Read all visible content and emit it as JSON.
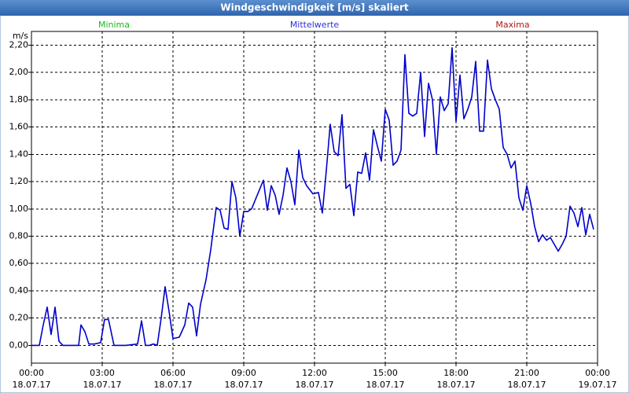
{
  "chart_data": {
    "type": "line",
    "title": "Windgeschwindigkeit [m/s] skaliert",
    "y_unit": "m/s",
    "legend": [
      {
        "name": "Minima",
        "color": "#18b818"
      },
      {
        "name": "Mittelwerte",
        "color": "#3030e0"
      },
      {
        "name": "Maxima",
        "color": "#b01818"
      }
    ],
    "x": [
      0,
      20,
      30,
      40,
      50,
      60,
      70,
      80,
      100,
      120,
      126,
      136,
      146,
      160,
      176,
      186,
      196,
      210,
      240,
      270,
      280,
      290,
      300,
      310,
      320,
      330,
      340,
      350,
      360,
      376,
      390,
      400,
      410,
      420,
      430,
      444,
      456,
      470,
      480,
      490,
      500,
      510,
      520,
      530,
      540,
      550,
      560,
      570,
      590,
      600,
      610,
      620,
      630,
      640,
      650,
      660,
      670,
      680,
      690,
      700,
      716,
      730,
      740,
      750,
      760,
      770,
      780,
      790,
      800,
      810,
      820,
      830,
      840,
      850,
      860,
      870,
      880,
      890,
      900,
      910,
      920,
      930,
      940,
      950,
      960,
      970,
      980,
      990,
      1000,
      1010,
      1020,
      1030,
      1040,
      1050,
      1060,
      1070,
      1080,
      1090,
      1100,
      1110,
      1120,
      1130,
      1140,
      1150,
      1160,
      1170,
      1180,
      1190,
      1200,
      1210,
      1220,
      1230,
      1240,
      1250,
      1260,
      1270,
      1280,
      1290,
      1300,
      1310,
      1320,
      1330,
      1340,
      1350,
      1360,
      1370,
      1380,
      1390,
      1400,
      1410,
      1420,
      1430
    ],
    "series": [
      {
        "color": "#0000cc",
        "values": [
          0,
          0,
          0.15,
          0.28,
          0.08,
          0.28,
          0.03,
          0,
          0,
          0,
          0.15,
          0.1,
          0.01,
          0.01,
          0.02,
          0.19,
          0.19,
          0,
          0,
          0.01,
          0.18,
          0,
          0,
          0.01,
          0,
          0.2,
          0.43,
          0.25,
          0.05,
          0.06,
          0.15,
          0.31,
          0.28,
          0.07,
          0.3,
          0.48,
          0.7,
          1.01,
          0.99,
          0.86,
          0.85,
          1.2,
          1.08,
          0.8,
          0.98,
          0.98,
          1.0,
          1.07,
          1.21,
          0.99,
          1.17,
          1.1,
          0.96,
          1.1,
          1.3,
          1.2,
          1.03,
          1.43,
          1.23,
          1.17,
          1.11,
          1.12,
          0.97,
          1.28,
          1.62,
          1.42,
          1.39,
          1.69,
          1.15,
          1.18,
          0.95,
          1.27,
          1.26,
          1.41,
          1.21,
          1.58,
          1.46,
          1.35,
          1.73,
          1.65,
          1.32,
          1.35,
          1.43,
          2.13,
          1.7,
          1.68,
          1.7,
          2.0,
          1.53,
          1.92,
          1.8,
          1.4,
          1.82,
          1.72,
          1.77,
          2.18,
          1.64,
          1.98,
          1.66,
          1.73,
          1.82,
          2.08,
          1.57,
          1.57,
          2.09,
          1.88,
          1.8,
          1.73,
          1.45,
          1.4,
          1.3,
          1.35,
          1.08,
          0.99,
          1.17,
          1.04,
          0.87,
          0.76,
          0.81,
          0.77,
          0.79,
          0.74,
          0.69,
          0.74,
          0.8,
          1.02,
          0.97,
          0.87,
          1.01,
          0.81,
          0.96,
          0.85
        ]
      }
    ],
    "xlim": [
      0,
      1440
    ],
    "xticks": [
      {
        "value": 0,
        "label": "00:00",
        "date": "18.07.17"
      },
      {
        "value": 180,
        "label": "03:00",
        "date": "18.07.17"
      },
      {
        "value": 360,
        "label": "06:00",
        "date": "18.07.17"
      },
      {
        "value": 540,
        "label": "09:00",
        "date": "18.07.17"
      },
      {
        "value": 720,
        "label": "12:00",
        "date": "18.07.17"
      },
      {
        "value": 900,
        "label": "15:00",
        "date": "18.07.17"
      },
      {
        "value": 1080,
        "label": "18:00",
        "date": "18.07.17"
      },
      {
        "value": 1260,
        "label": "21:00",
        "date": "18.07.17"
      },
      {
        "value": 1440,
        "label": "00:00",
        "date": "19.07.17"
      }
    ],
    "ylim": [
      -0.13,
      2.3
    ],
    "yticks": [
      {
        "value": 0,
        "label": "0,00"
      },
      {
        "value": 0.2,
        "label": "0,20"
      },
      {
        "value": 0.4,
        "label": "0,40"
      },
      {
        "value": 0.6,
        "label": "0,60"
      },
      {
        "value": 0.8,
        "label": "0,80"
      },
      {
        "value": 1.0,
        "label": "1,00"
      },
      {
        "value": 1.2,
        "label": "1,20"
      },
      {
        "value": 1.4,
        "label": "1,40"
      },
      {
        "value": 1.6,
        "label": "1,60"
      },
      {
        "value": 1.8,
        "label": "1,80"
      },
      {
        "value": 2.0,
        "label": "2,00"
      },
      {
        "value": 2.2,
        "label": "2,20"
      }
    ],
    "grid": true
  }
}
